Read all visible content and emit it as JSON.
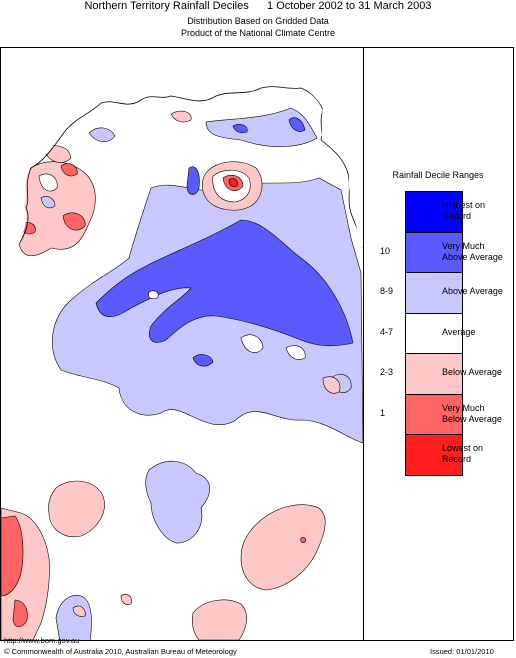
{
  "header": {
    "title": "Northern Territory Rainfall Deciles      1 October 2002 to 31 March 2003",
    "subtitle_1": "Distribution Based on Gridded Data",
    "subtitle_2": "Product of the National Climate Centre"
  },
  "legend": {
    "title": "Rainfall Decile Ranges",
    "items": [
      {
        "range": "",
        "label_1": "Highest on",
        "label_2": "Record",
        "color": "#0000ff"
      },
      {
        "range": "10",
        "label_1": "Very Much",
        "label_2": "Above Average",
        "color": "#5a5aff"
      },
      {
        "range": "8-9",
        "label_1": "Above Average",
        "label_2": "",
        "color": "#c8c8ff"
      },
      {
        "range": "4-7",
        "label_1": "Average",
        "label_2": "",
        "color": "#ffffff"
      },
      {
        "range": "2-3",
        "label_1": "Below Average",
        "label_2": "",
        "color": "#ffc8c8"
      },
      {
        "range": "1",
        "label_1": "Very Much",
        "label_2": "Below Average",
        "color": "#ff6464"
      },
      {
        "range": "",
        "label_1": "Lowest on",
        "label_2": "Record",
        "color": "#ff1e1e"
      }
    ]
  },
  "footer": {
    "url": "http://www.bom.gov.au",
    "copyright": "© Commonwealth of Australia 2010, Australian Bureau of Meteorology",
    "issued": "Issued: 01/01/2010"
  }
}
